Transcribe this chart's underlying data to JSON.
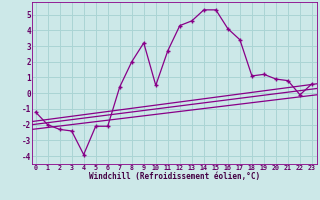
{
  "xlabel": "Windchill (Refroidissement éolien,°C)",
  "bg_color": "#cce8e8",
  "grid_color": "#aad4d4",
  "line_color": "#880088",
  "x_data": [
    0,
    1,
    2,
    3,
    4,
    5,
    6,
    7,
    8,
    9,
    10,
    11,
    12,
    13,
    14,
    15,
    16,
    17,
    18,
    19,
    20,
    21,
    22,
    23
  ],
  "y_main": [
    -1.2,
    -2.0,
    -2.3,
    -2.4,
    -3.9,
    -2.1,
    -2.1,
    0.4,
    2.0,
    3.2,
    0.5,
    2.7,
    4.3,
    4.6,
    5.3,
    5.3,
    4.1,
    3.4,
    1.1,
    1.2,
    0.9,
    0.8,
    -0.1,
    0.6
  ],
  "trend_line1": [
    -1.8,
    0.6
  ],
  "trend_line2": [
    -2.0,
    0.3
  ],
  "trend_line3": [
    -2.3,
    -0.1
  ],
  "ylim": [
    -4.5,
    5.8
  ],
  "xlim": [
    -0.3,
    23.4
  ],
  "yticks": [
    -4,
    -3,
    -2,
    -1,
    0,
    1,
    2,
    3,
    4,
    5
  ],
  "xticks": [
    0,
    1,
    2,
    3,
    4,
    5,
    6,
    7,
    8,
    9,
    10,
    11,
    12,
    13,
    14,
    15,
    16,
    17,
    18,
    19,
    20,
    21,
    22,
    23
  ],
  "xtick_labels": [
    "0",
    "1",
    "2",
    "3",
    "4",
    "5",
    "6",
    "7",
    "8",
    "9",
    "10",
    "11",
    "12",
    "13",
    "14",
    "15",
    "16",
    "17",
    "18",
    "19",
    "20",
    "21",
    "22",
    "23"
  ]
}
